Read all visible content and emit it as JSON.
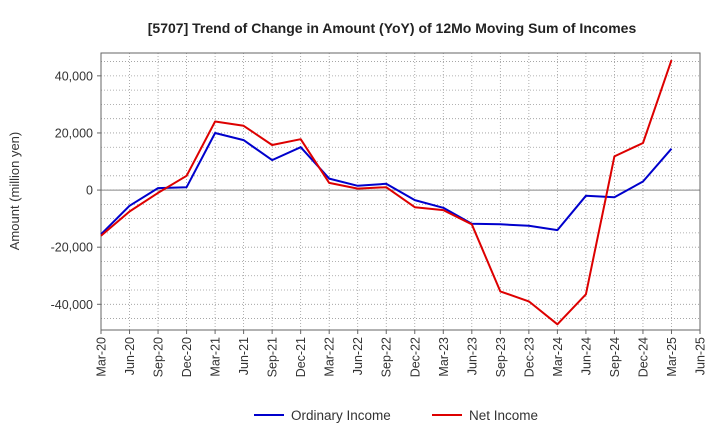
{
  "chart_data": {
    "type": "line",
    "title": "[5707]  Trend of Change in Amount (YoY) of 12Mo Moving Sum of Incomes",
    "xlabel": "",
    "ylabel": "Amount (million yen)",
    "ylim": [
      -49000,
      48000
    ],
    "yticks": [
      -40000,
      -20000,
      0,
      20000,
      40000
    ],
    "ytick_labels": [
      "-40,000",
      "-20,000",
      "0",
      "20,000",
      "40,000"
    ],
    "categories": [
      "Mar-20",
      "Jun-20",
      "Sep-20",
      "Dec-20",
      "Mar-21",
      "Jun-21",
      "Sep-21",
      "Dec-21",
      "Mar-22",
      "Jun-22",
      "Sep-22",
      "Dec-22",
      "Mar-23",
      "Jun-23",
      "Sep-23",
      "Dec-23",
      "Mar-24",
      "Jun-24",
      "Sep-24",
      "Dec-24",
      "Mar-25",
      "Jun-25"
    ],
    "grid": true,
    "legend_position": "bottom",
    "series": [
      {
        "name": "Ordinary Income",
        "color": "#0000cc",
        "values": [
          -15500,
          -5500,
          700,
          1000,
          20000,
          17500,
          10500,
          15000,
          4000,
          1500,
          2200,
          -3500,
          -6200,
          -11800,
          -12000,
          -12500,
          -14000,
          -2000,
          -2500,
          3000,
          14500,
          null
        ]
      },
      {
        "name": "Net Income",
        "color": "#dd0000",
        "values": [
          -16000,
          -7500,
          -1000,
          5000,
          24000,
          22500,
          15800,
          17800,
          2500,
          500,
          1000,
          -6000,
          -7000,
          -12000,
          -35500,
          -39000,
          -47000,
          -36500,
          11800,
          16500,
          45500,
          null
        ]
      }
    ]
  }
}
